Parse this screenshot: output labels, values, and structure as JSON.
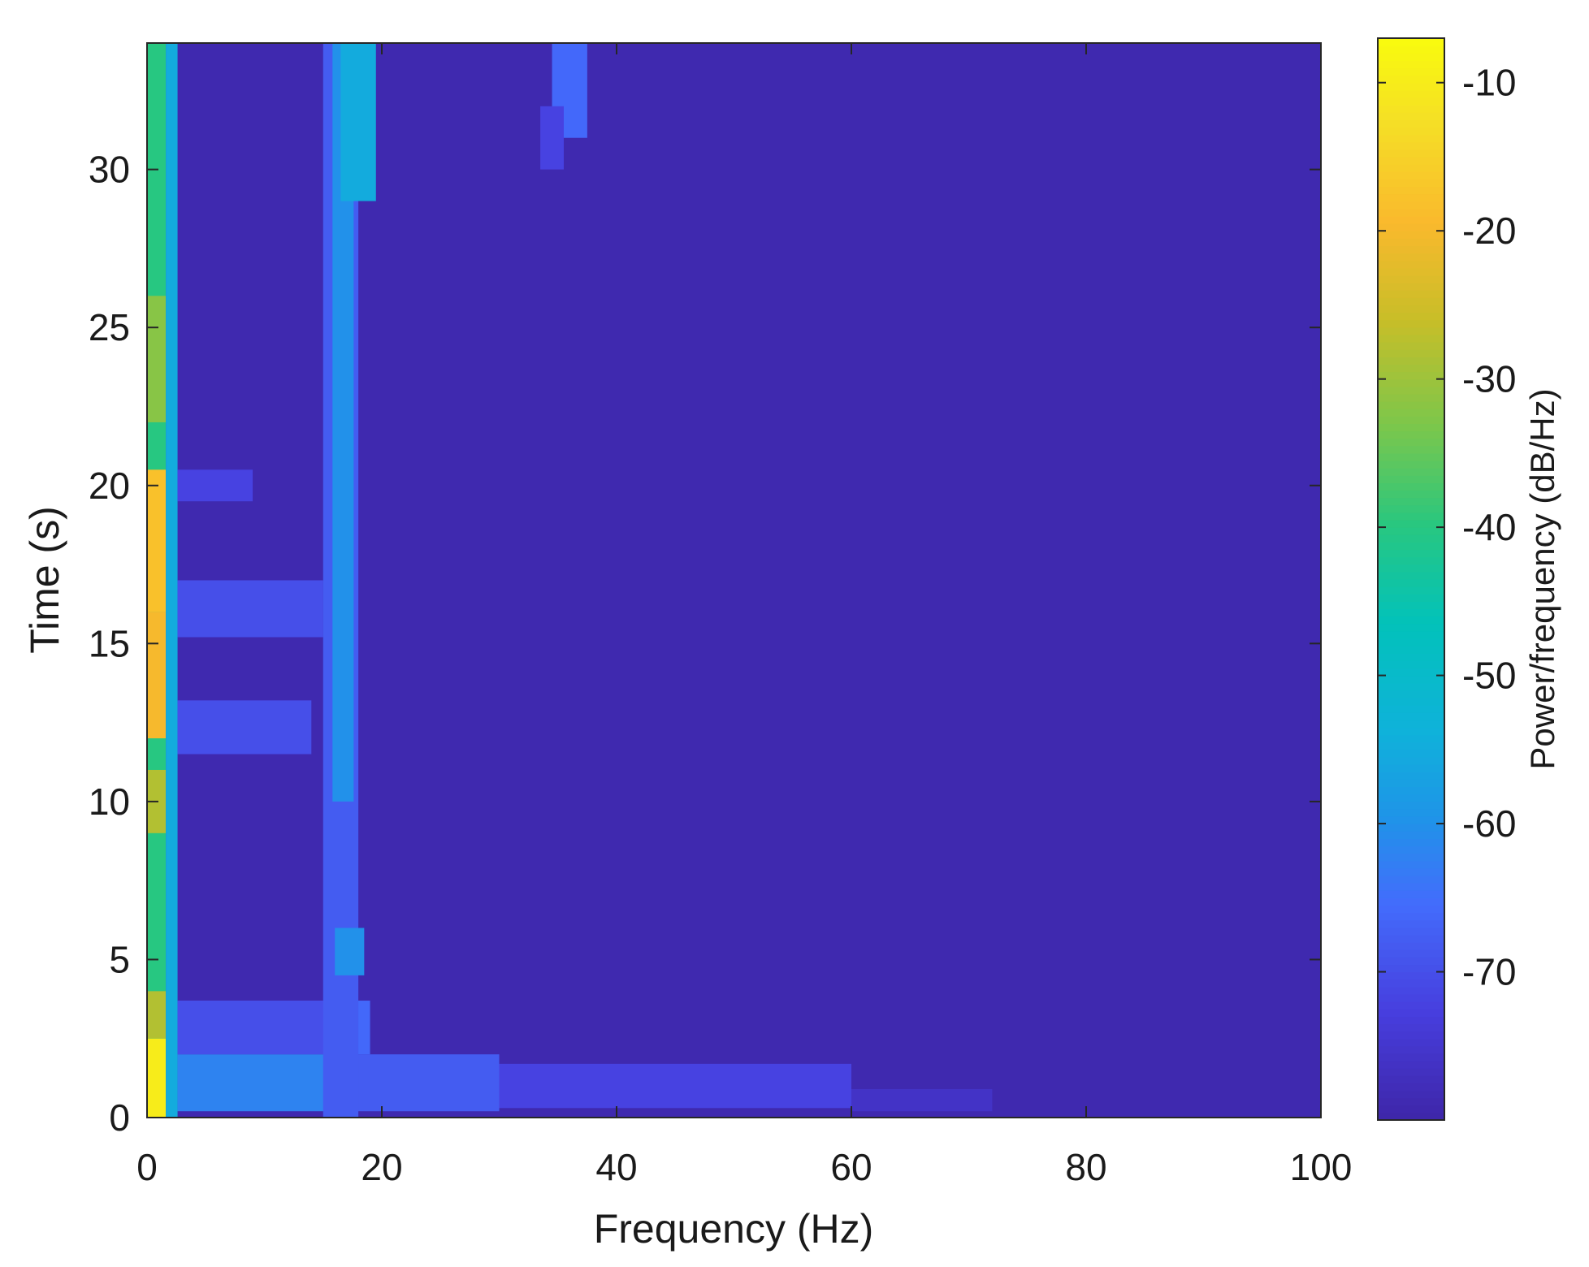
{
  "chart_data": {
    "type": "heatmap",
    "title": "",
    "xlabel": "Frequency (Hz)",
    "ylabel": "Time (s)",
    "colorbar_label": "Power/frequency (dB/Hz)",
    "xlim": [
      0,
      100
    ],
    "ylim": [
      0,
      34
    ],
    "clim": [
      -80,
      -7
    ],
    "x_ticks": [
      0,
      20,
      40,
      60,
      80,
      100
    ],
    "y_ticks": [
      0,
      5,
      10,
      15,
      20,
      25,
      30
    ],
    "colorbar_ticks": [
      -10,
      -20,
      -30,
      -40,
      -50,
      -60,
      -70
    ],
    "colormap": "parula",
    "background_level_db": -79,
    "grid": false,
    "regions": [
      {
        "f": [
          0,
          1.6
        ],
        "t": [
          0,
          34
        ],
        "level": -40
      },
      {
        "f": [
          0,
          1.6
        ],
        "t": [
          0,
          2.5
        ],
        "level": -10
      },
      {
        "f": [
          0,
          1.6
        ],
        "t": [
          2.5,
          4
        ],
        "level": -28
      },
      {
        "f": [
          0,
          1.6
        ],
        "t": [
          9,
          11
        ],
        "level": -28
      },
      {
        "f": [
          0,
          1.6
        ],
        "t": [
          12,
          16
        ],
        "level": -20
      },
      {
        "f": [
          0,
          1.6
        ],
        "t": [
          16,
          20.5
        ],
        "level": -18
      },
      {
        "f": [
          0,
          1.6
        ],
        "t": [
          22,
          26
        ],
        "level": -32
      },
      {
        "f": [
          1.6,
          2.6
        ],
        "t": [
          0,
          34
        ],
        "level": -55
      },
      {
        "f": [
          2.6,
          16
        ],
        "t": [
          0.2,
          2
        ],
        "level": -62
      },
      {
        "f": [
          16,
          30
        ],
        "t": [
          0.2,
          2
        ],
        "level": -68
      },
      {
        "f": [
          30,
          60
        ],
        "t": [
          0.3,
          1.7
        ],
        "level": -72
      },
      {
        "f": [
          60,
          72
        ],
        "t": [
          0.2,
          0.9
        ],
        "level": -76
      },
      {
        "f": [
          2.6,
          16
        ],
        "t": [
          2,
          3.7
        ],
        "level": -70
      },
      {
        "f": [
          16,
          19
        ],
        "t": [
          2,
          3.7
        ],
        "level": -66
      },
      {
        "f": [
          2.6,
          14
        ],
        "t": [
          11.5,
          13.2
        ],
        "level": -70
      },
      {
        "f": [
          2.6,
          15
        ],
        "t": [
          15.2,
          17
        ],
        "level": -70
      },
      {
        "f": [
          2.6,
          9
        ],
        "t": [
          19.5,
          20.5
        ],
        "level": -72
      },
      {
        "f": [
          15,
          18
        ],
        "t": [
          0,
          34
        ],
        "level": -68
      },
      {
        "f": [
          15.8,
          17.6
        ],
        "t": [
          10,
          34
        ],
        "level": -60
      },
      {
        "f": [
          16,
          18.5
        ],
        "t": [
          4.5,
          6
        ],
        "level": -60
      },
      {
        "f": [
          16.5,
          19.5
        ],
        "t": [
          29,
          34
        ],
        "level": -55
      },
      {
        "f": [
          34.5,
          37.5
        ],
        "t": [
          31,
          34
        ],
        "level": -66
      },
      {
        "f": [
          33.5,
          35.5
        ],
        "t": [
          30,
          32
        ],
        "level": -72
      }
    ]
  }
}
